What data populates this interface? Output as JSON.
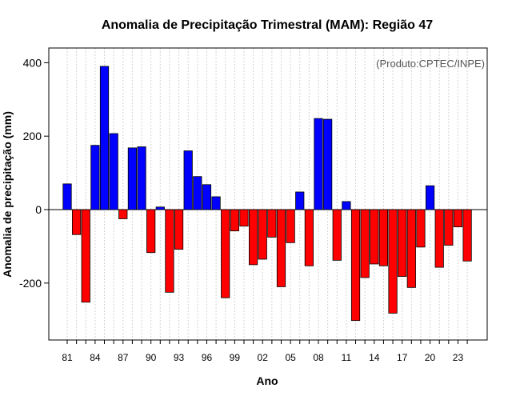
{
  "chart_data": {
    "type": "bar",
    "title": "Anomalia de Precipitação Trimestral (MAM): Região 47",
    "xlabel": "Ano",
    "ylabel": "Anomalia de precipitação (mm)",
    "annotation": "(Produto:CPTEC/INPE)",
    "ylim": [
      -355,
      440
    ],
    "yticks": [
      -200,
      0,
      200,
      400
    ],
    "grid": "vertical-dotted",
    "positive_color": "#0000ff",
    "negative_color": "#ff0000",
    "bar_border_color": "#000000",
    "categories": [
      "1981",
      "1982",
      "1983",
      "1984",
      "1985",
      "1986",
      "1987",
      "1988",
      "1989",
      "1990",
      "1991",
      "1992",
      "1993",
      "1994",
      "1995",
      "1996",
      "1997",
      "1998",
      "1999",
      "2000",
      "2001",
      "2002",
      "2003",
      "2004",
      "2005",
      "2006",
      "2007",
      "2008",
      "2009",
      "2010",
      "2011",
      "2012",
      "2013",
      "2014",
      "2015",
      "2016",
      "2017",
      "2018",
      "2019",
      "2020",
      "2021",
      "2022",
      "2023",
      "2024"
    ],
    "values": [
      70,
      -68,
      -252,
      175,
      390,
      207,
      -25,
      168,
      171,
      -117,
      7,
      -225,
      -108,
      160,
      90,
      68,
      35,
      -240,
      -58,
      -45,
      -150,
      -135,
      -75,
      -210,
      -90,
      48,
      -153,
      248,
      246,
      -138,
      22,
      -302,
      -185,
      -148,
      -153,
      -282,
      -182,
      -212,
      -102,
      65,
      -157,
      -97,
      -47,
      -140
    ],
    "xtick_labels": [
      {
        "index": 0,
        "label": "81"
      },
      {
        "index": 3,
        "label": "84"
      },
      {
        "index": 6,
        "label": "87"
      },
      {
        "index": 9,
        "label": "90"
      },
      {
        "index": 12,
        "label": "93"
      },
      {
        "index": 15,
        "label": "96"
      },
      {
        "index": 18,
        "label": "99"
      },
      {
        "index": 21,
        "label": "02"
      },
      {
        "index": 24,
        "label": "05"
      },
      {
        "index": 27,
        "label": "08"
      },
      {
        "index": 30,
        "label": "11"
      },
      {
        "index": 33,
        "label": "14"
      },
      {
        "index": 36,
        "label": "17"
      },
      {
        "index": 39,
        "label": "20"
      },
      {
        "index": 42,
        "label": "23"
      }
    ]
  }
}
